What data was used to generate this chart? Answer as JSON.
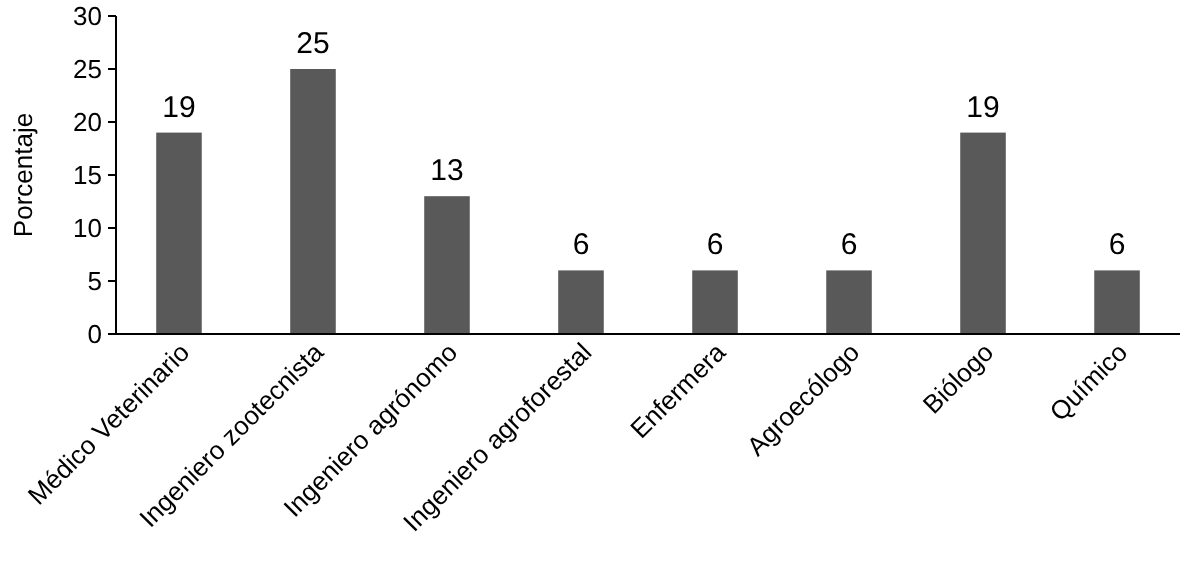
{
  "chart_data": {
    "type": "bar",
    "ylabel": "Porcentaje",
    "categories": [
      "Médico Veterinario",
      "Ingeniero zootecnista",
      "Ingeniero agrónomo",
      "Ingeniero agroforestal",
      "Enfermera",
      "Agroecólogo",
      "Biólogo",
      "Químico"
    ],
    "values": [
      19,
      25,
      13,
      6,
      6,
      6,
      19,
      6
    ],
    "color": "#595959",
    "ylim": [
      0,
      30
    ],
    "yticks": [
      0,
      5,
      10,
      15,
      20,
      25,
      30
    ],
    "grid": false,
    "data_labels": true
  }
}
